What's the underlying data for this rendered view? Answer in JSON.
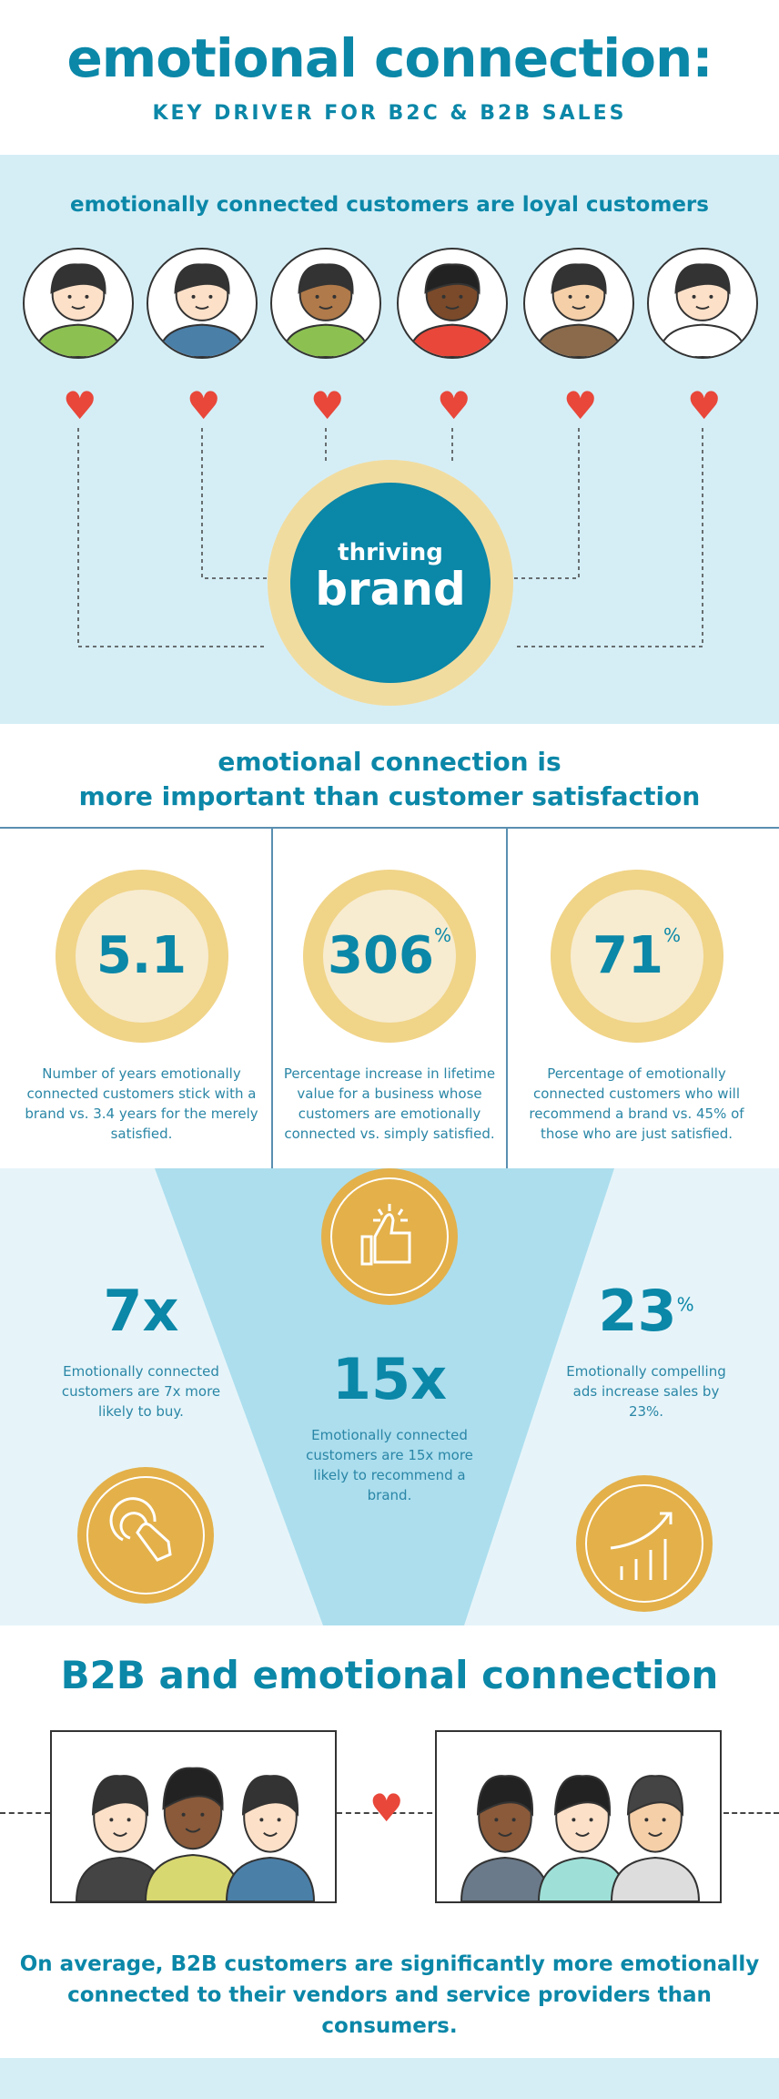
{
  "header": {
    "title": "emotional connection:",
    "subtitle": "KEY DRIVER FOR B2C & B2B SALES"
  },
  "loyal": {
    "heading": "emotionally connected customers are loyal customers",
    "brand_small": "thriving",
    "brand_big": "brand"
  },
  "importance": {
    "line1": "emotional connection is",
    "line2": "more important than customer satisfaction"
  },
  "stats": [
    {
      "value": "5.1",
      "suffix": "",
      "text": "Number of years emotionally connected customers stick with a brand vs. 3.4 years for the merely satisfied."
    },
    {
      "value": "306",
      "suffix": "%",
      "text": "Percentage increase in lifetime value for a business whose customers are emotionally connected vs. simply satisfied."
    },
    {
      "value": "71",
      "suffix": "%",
      "text": "Percentage of emotionally connected customers who will recommend a brand vs. 45% of those who are just satisfied."
    }
  ],
  "funnel": {
    "left": {
      "value": "7x",
      "text": "Emotionally connected customers are 7x more likely to buy."
    },
    "center": {
      "value": "15x",
      "text": "Emotionally connected customers are 15x more likely to recommend a brand."
    },
    "right": {
      "value": "23",
      "suffix": "%",
      "text": "Emotionally compelling ads increase sales by 23%."
    }
  },
  "b2b": {
    "heading": "B2B and emotional connection",
    "text": "On average, B2B customers are significantly more emotionally connected to their vendors and service providers than consumers."
  },
  "colors": {
    "teal": "#0b87a8",
    "light_blue": "#d5eef6",
    "heart": "#e8473a",
    "gold": "#e3b04a"
  }
}
